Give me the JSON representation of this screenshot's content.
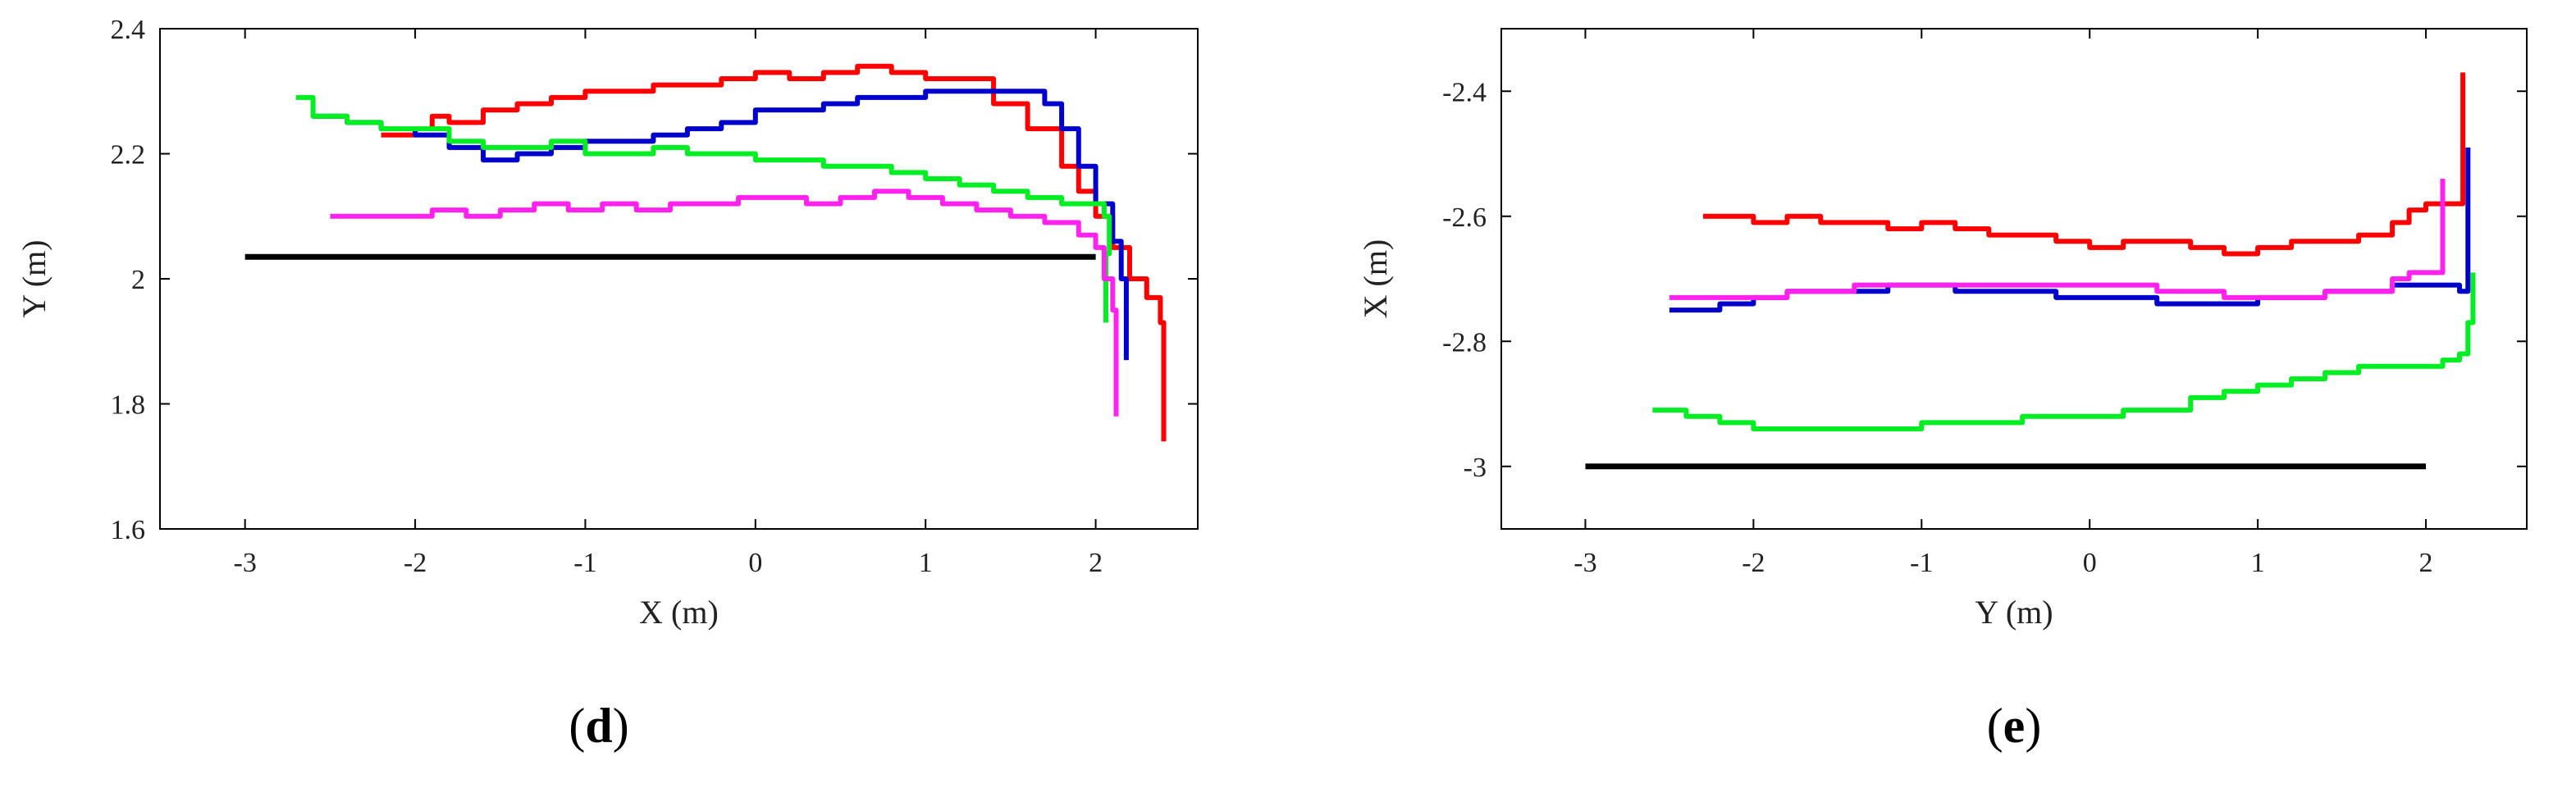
{
  "chart_data": [
    {
      "type": "line",
      "panel_label": "d",
      "xlabel": "X (m)",
      "ylabel": "Y (m)",
      "xlim": [
        -3.5,
        2.6
      ],
      "ylim": [
        1.6,
        2.4
      ],
      "xticks": [
        -3,
        -2,
        -1,
        0,
        1,
        2
      ],
      "yticks": [
        1.6,
        1.8,
        2,
        2.2,
        2.4
      ],
      "xtick_labels": [
        "-3",
        "-2",
        "-1",
        "0",
        "1",
        "2"
      ],
      "ytick_labels": [
        "1.6",
        "1.8",
        "2",
        "2.2",
        "2.4"
      ],
      "grid": false,
      "series": [
        {
          "color": "#000000",
          "x": [
            -3.0,
            2.0
          ],
          "y": [
            2.035,
            2.035
          ]
        },
        {
          "color": "#ff0000",
          "x": [
            -2.2,
            -2.0,
            -1.9,
            -1.8,
            -1.6,
            -1.4,
            -1.2,
            -1.0,
            -0.8,
            -0.6,
            -0.4,
            -0.2,
            0.0,
            0.2,
            0.4,
            0.6,
            0.8,
            1.0,
            1.2,
            1.4,
            1.6,
            1.8,
            1.9,
            2.0,
            2.1,
            2.2,
            2.3,
            2.38,
            2.4,
            2.4
          ],
          "y": [
            2.23,
            2.24,
            2.26,
            2.25,
            2.27,
            2.28,
            2.29,
            2.3,
            2.3,
            2.31,
            2.31,
            2.32,
            2.33,
            2.32,
            2.33,
            2.34,
            2.33,
            2.32,
            2.32,
            2.28,
            2.24,
            2.18,
            2.14,
            2.1,
            2.05,
            2.0,
            1.97,
            1.93,
            1.85,
            1.74
          ]
        },
        {
          "color": "#0000cc",
          "x": [
            -2.6,
            -2.4,
            -2.2,
            -2.0,
            -1.8,
            -1.6,
            -1.4,
            -1.2,
            -1.0,
            -0.8,
            -0.6,
            -0.4,
            -0.2,
            0.0,
            0.2,
            0.4,
            0.6,
            0.8,
            1.0,
            1.2,
            1.4,
            1.6,
            1.7,
            1.8,
            1.9,
            2.0,
            2.1,
            2.15,
            2.18,
            2.18
          ],
          "y": [
            2.26,
            2.25,
            2.24,
            2.23,
            2.21,
            2.19,
            2.2,
            2.21,
            2.22,
            2.22,
            2.23,
            2.24,
            2.25,
            2.27,
            2.27,
            2.28,
            2.29,
            2.29,
            2.3,
            2.3,
            2.3,
            2.3,
            2.28,
            2.24,
            2.18,
            2.12,
            2.06,
            2.0,
            1.93,
            1.87
          ]
        },
        {
          "color": "#00ee22",
          "x": [
            -2.7,
            -2.6,
            -2.4,
            -2.2,
            -2.0,
            -1.8,
            -1.6,
            -1.4,
            -1.2,
            -1.0,
            -0.8,
            -0.6,
            -0.4,
            -0.2,
            0.0,
            0.2,
            0.4,
            0.6,
            0.8,
            1.0,
            1.2,
            1.4,
            1.6,
            1.8,
            1.9,
            2.0,
            2.05,
            2.08,
            2.06,
            2.06
          ],
          "y": [
            2.29,
            2.26,
            2.25,
            2.24,
            2.24,
            2.22,
            2.21,
            2.21,
            2.22,
            2.2,
            2.2,
            2.21,
            2.2,
            2.2,
            2.19,
            2.19,
            2.18,
            2.18,
            2.17,
            2.16,
            2.15,
            2.14,
            2.13,
            2.12,
            2.12,
            2.12,
            2.1,
            2.04,
            1.98,
            1.93
          ]
        },
        {
          "color": "#ff22ee",
          "x": [
            -2.5,
            -2.3,
            -2.1,
            -1.9,
            -1.7,
            -1.5,
            -1.3,
            -1.1,
            -0.9,
            -0.7,
            -0.5,
            -0.3,
            -0.1,
            0.1,
            0.3,
            0.5,
            0.7,
            0.9,
            1.1,
            1.3,
            1.5,
            1.7,
            1.9,
            2.0,
            2.05,
            2.1,
            2.12,
            2.12
          ],
          "y": [
            2.1,
            2.1,
            2.1,
            2.11,
            2.1,
            2.11,
            2.12,
            2.11,
            2.12,
            2.11,
            2.12,
            2.12,
            2.13,
            2.13,
            2.12,
            2.13,
            2.14,
            2.13,
            2.12,
            2.11,
            2.1,
            2.09,
            2.07,
            2.05,
            2.0,
            1.95,
            1.87,
            1.78
          ]
        }
      ]
    },
    {
      "type": "line",
      "panel_label": "e",
      "xlabel": "Y (m)",
      "ylabel": "X (m)",
      "xlim": [
        -3.5,
        2.6
      ],
      "ylim": [
        -3.1,
        -2.3
      ],
      "xticks": [
        -3,
        -2,
        -1,
        0,
        1,
        2
      ],
      "yticks": [
        -3,
        -2.8,
        -2.6,
        -2.4
      ],
      "xtick_labels": [
        "-3",
        "-2",
        "-1",
        "0",
        "1",
        "2"
      ],
      "ytick_labels": [
        "-3",
        "-2.8",
        "-2.6",
        "-2.4"
      ],
      "grid": false,
      "series": [
        {
          "color": "#000000",
          "x": [
            -3.0,
            2.0
          ],
          "y": [
            -3.0,
            -3.0
          ]
        },
        {
          "color": "#ff0000",
          "x": [
            -2.3,
            -2.0,
            -1.8,
            -1.6,
            -1.4,
            -1.2,
            -1.0,
            -0.8,
            -0.6,
            -0.4,
            -0.2,
            0.0,
            0.2,
            0.4,
            0.6,
            0.8,
            1.0,
            1.2,
            1.4,
            1.6,
            1.8,
            1.9,
            2.0,
            2.1,
            2.2,
            2.22,
            2.22
          ],
          "y": [
            -2.6,
            -2.61,
            -2.6,
            -2.61,
            -2.61,
            -2.62,
            -2.61,
            -2.62,
            -2.63,
            -2.63,
            -2.64,
            -2.65,
            -2.64,
            -2.64,
            -2.65,
            -2.66,
            -2.65,
            -2.64,
            -2.64,
            -2.63,
            -2.61,
            -2.59,
            -2.58,
            -2.58,
            -2.58,
            -2.48,
            -2.37
          ]
        },
        {
          "color": "#0000cc",
          "x": [
            -2.5,
            -2.2,
            -2.0,
            -1.8,
            -1.6,
            -1.4,
            -1.2,
            -1.0,
            -0.8,
            -0.6,
            -0.4,
            -0.2,
            0.0,
            0.2,
            0.4,
            0.6,
            0.8,
            1.0,
            1.2,
            1.4,
            1.6,
            1.8,
            2.0,
            2.1,
            2.2,
            2.25,
            2.25
          ],
          "y": [
            -2.75,
            -2.74,
            -2.73,
            -2.72,
            -2.72,
            -2.72,
            -2.71,
            -2.71,
            -2.72,
            -2.72,
            -2.72,
            -2.73,
            -2.73,
            -2.73,
            -2.74,
            -2.74,
            -2.74,
            -2.73,
            -2.73,
            -2.72,
            -2.72,
            -2.71,
            -2.71,
            -2.71,
            -2.72,
            -2.62,
            -2.49
          ]
        },
        {
          "color": "#00ee22",
          "x": [
            -2.6,
            -2.4,
            -2.2,
            -2.0,
            -1.8,
            -1.6,
            -1.4,
            -1.2,
            -1.0,
            -0.8,
            -0.6,
            -0.4,
            -0.2,
            0.0,
            0.2,
            0.4,
            0.6,
            0.8,
            1.0,
            1.2,
            1.4,
            1.6,
            1.8,
            2.0,
            2.1,
            2.2,
            2.25,
            2.28
          ],
          "y": [
            -2.91,
            -2.92,
            -2.93,
            -2.94,
            -2.94,
            -2.94,
            -2.94,
            -2.94,
            -2.93,
            -2.93,
            -2.93,
            -2.92,
            -2.92,
            -2.92,
            -2.91,
            -2.91,
            -2.89,
            -2.88,
            -2.87,
            -2.86,
            -2.85,
            -2.84,
            -2.84,
            -2.84,
            -2.83,
            -2.82,
            -2.77,
            -2.69
          ]
        },
        {
          "color": "#ff22ee",
          "x": [
            -2.5,
            -2.2,
            -2.0,
            -1.8,
            -1.6,
            -1.4,
            -1.2,
            -1.0,
            -0.8,
            -0.6,
            -0.4,
            -0.2,
            0.0,
            0.2,
            0.4,
            0.6,
            0.8,
            1.0,
            1.2,
            1.4,
            1.6,
            1.8,
            1.9,
            2.0,
            2.05,
            2.1,
            2.1
          ],
          "y": [
            -2.73,
            -2.73,
            -2.73,
            -2.72,
            -2.72,
            -2.71,
            -2.71,
            -2.71,
            -2.71,
            -2.71,
            -2.71,
            -2.71,
            -2.71,
            -2.71,
            -2.72,
            -2.72,
            -2.73,
            -2.73,
            -2.73,
            -2.72,
            -2.72,
            -2.7,
            -2.69,
            -2.69,
            -2.69,
            -2.63,
            -2.54
          ]
        }
      ]
    }
  ]
}
